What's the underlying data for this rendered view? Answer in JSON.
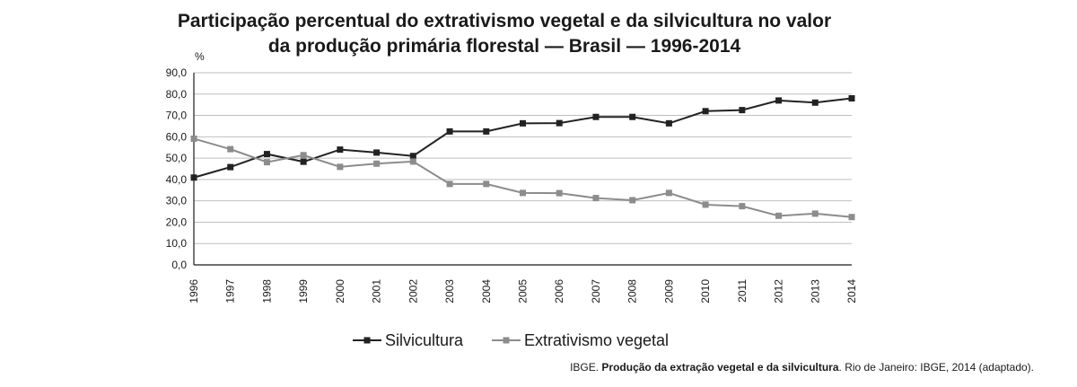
{
  "chart_data": {
    "type": "line",
    "title_line1": "Participação percentual do extrativismo vegetal e da silvicultura no valor",
    "title_line2": "da produção primária florestal — Brasil — 1996-2014",
    "ylabel": "%",
    "xlabel": "",
    "ylim": [
      0,
      90
    ],
    "yticks": [
      "0,0",
      "10,0",
      "20,0",
      "30,0",
      "40,0",
      "50,0",
      "60,0",
      "70,0",
      "80,0",
      "90,0"
    ],
    "categories": [
      "1996",
      "1997",
      "1998",
      "1999",
      "2000",
      "2001",
      "2002",
      "2003",
      "2004",
      "2005",
      "2006",
      "2007",
      "2008",
      "2009",
      "2010",
      "2011",
      "2012",
      "2013",
      "2014"
    ],
    "series": [
      {
        "name": "Silvicultura",
        "color": "#222222",
        "values": [
          40.9,
          45.8,
          51.9,
          48.3,
          54.0,
          52.6,
          51.0,
          62.5,
          62.5,
          66.3,
          66.4,
          69.3,
          69.3,
          66.3,
          72.0,
          72.5,
          77.0,
          76.0,
          78.0
        ]
      },
      {
        "name": "Extrativismo vegetal",
        "color": "#8c8c8c",
        "values": [
          59.1,
          54.2,
          48.1,
          51.4,
          45.9,
          47.4,
          48.4,
          37.9,
          37.9,
          33.7,
          33.6,
          31.3,
          30.3,
          33.7,
          28.2,
          27.5,
          23.0,
          24.0,
          22.4
        ]
      }
    ],
    "grid": true,
    "legend_position": "bottom-center"
  },
  "source": {
    "prefix": "IBGE. ",
    "bold": "Produção da extração vegetal e da silvicultura",
    "suffix": ". Rio de Janeiro: IBGE, 2014 (adaptado)."
  }
}
